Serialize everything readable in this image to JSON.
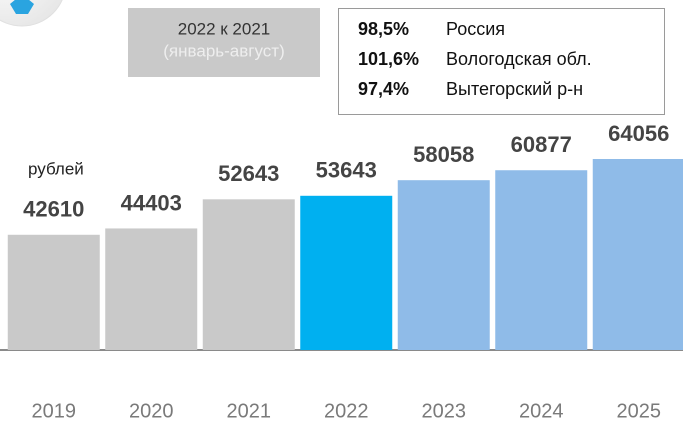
{
  "chart_data": {
    "type": "bar",
    "unit_label": "рублей",
    "categories": [
      "2019",
      "2020",
      "2021",
      "2022",
      "2023",
      "2024",
      "2025"
    ],
    "values": [
      42610,
      44403,
      52643,
      53643,
      58058,
      60877,
      64056
    ],
    "colors": [
      "#c9c9c9",
      "#c9c9c9",
      "#c9c9c9",
      "#00b0f0",
      "#8fbbe8",
      "#8fbbe8",
      "#8fbbe8"
    ],
    "ylim": [
      10000,
      70000
    ]
  },
  "comparison": {
    "title": "2022 к 2021",
    "subtitle": "(январь-август)",
    "values": [
      98.5,
      101.6,
      97.4
    ],
    "value_labels": [
      "98,5%",
      "101,6%",
      "97,4%"
    ],
    "names": [
      "Россия",
      "Вологодская обл.",
      "Вытегорский р-н"
    ]
  }
}
